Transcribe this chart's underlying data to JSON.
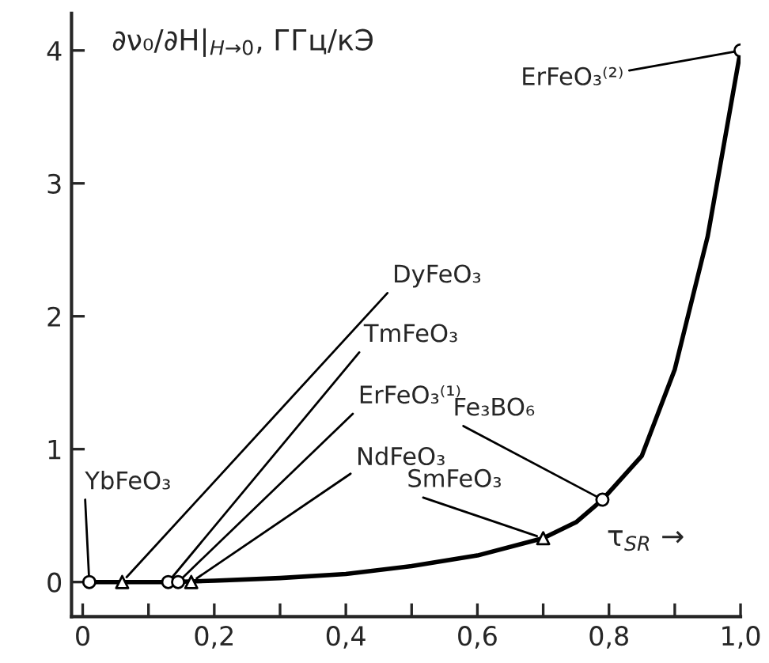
{
  "chart_data": {
    "type": "line",
    "ylabel": "∂ν₀/∂H|$_{H→0}$, ГГц/кЭ",
    "xlabel": "τ$_{SR}$ →",
    "xlim": [
      -0.017,
      1.0
    ],
    "ylim": [
      -0.26,
      4.28
    ],
    "xticks": [
      0,
      {
        "value": 0.1,
        "label": null
      },
      {
        "value": 0.2,
        "label": "0,2"
      },
      {
        "value": 0.3,
        "label": null
      },
      {
        "value": 0.4,
        "label": "0,4"
      },
      {
        "value": 0.5,
        "label": null
      },
      {
        "value": 0.6,
        "label": "0,6"
      },
      {
        "value": 0.7,
        "label": null
      },
      {
        "value": 0.8,
        "label": "0,8"
      },
      {
        "value": 0.9,
        "label": null
      },
      {
        "value": 1.0,
        "label": "1,0"
      }
    ],
    "yticks": [
      0,
      1,
      2,
      3,
      4
    ],
    "grid": false,
    "series": [
      {
        "color": "#000000",
        "marker": "none",
        "x": [
          0.01,
          0.06,
          0.13,
          0.2,
          0.3,
          0.4,
          0.5,
          0.6,
          0.7,
          0.75,
          0.79,
          0.85,
          0.9,
          0.95,
          1.0
        ],
        "values": [
          0,
          0,
          0,
          0.01,
          0.03,
          0.06,
          0.12,
          0.2,
          0.33,
          0.45,
          0.62,
          0.95,
          1.6,
          2.6,
          4.0
        ]
      },
      {
        "type": "scatter",
        "color": "#000000",
        "marker": "circle",
        "x": [
          0.01,
          0.13,
          0.145,
          0.79,
          1.0
        ],
        "values": [
          0,
          0,
          0,
          0.62,
          4.0
        ]
      },
      {
        "type": "scatter",
        "color": "#000000",
        "marker": "triangle",
        "x": [
          0.06,
          0.165,
          0.7
        ],
        "values": [
          0,
          0,
          0.33
        ]
      }
    ],
    "annotations": [
      {
        "text": "YbFeO₃",
        "x": 0.01,
        "y": 0
      },
      {
        "text": "DyFeO₃",
        "x": 0.06,
        "y": 0
      },
      {
        "text": "TmFeO₃",
        "x": 0.13,
        "y": 0
      },
      {
        "text": "ErFeO₃⁽¹⁾",
        "x": 0.145,
        "y": 0
      },
      {
        "text": "NdFeO₃",
        "x": 0.165,
        "y": 0
      },
      {
        "text": "SmFeO₃",
        "x": 0.7,
        "y": 0.33
      },
      {
        "text": "Fe₃BO₆",
        "x": 0.79,
        "y": 0.62
      },
      {
        "text": "ErFeO₃⁽²⁾",
        "x": 1.0,
        "y": 4.0
      }
    ]
  }
}
